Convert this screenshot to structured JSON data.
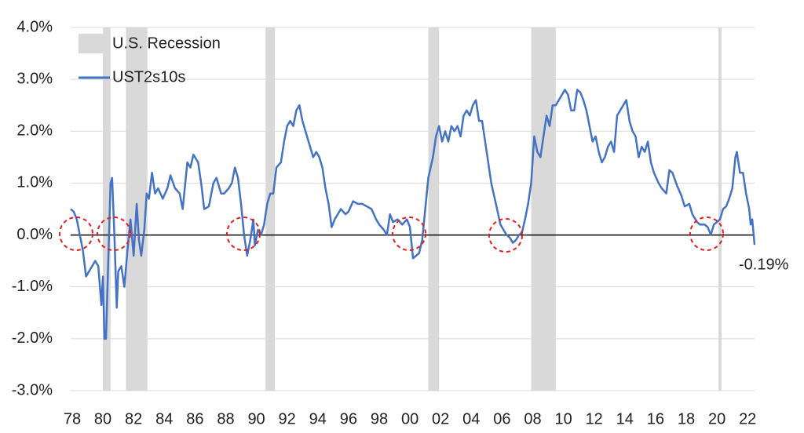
{
  "chart_data": {
    "type": "line",
    "x": [
      1977.9,
      1978.1,
      1978.3,
      1978.5,
      1978.7,
      1978.9,
      1979.1,
      1979.3,
      1979.5,
      1979.7,
      1979.9,
      1980.0,
      1980.1,
      1980.2,
      1980.35,
      1980.5,
      1980.6,
      1980.75,
      1980.9,
      1981.0,
      1981.2,
      1981.4,
      1981.6,
      1981.8,
      1982.0,
      1982.2,
      1982.35,
      1982.5,
      1982.7,
      1982.85,
      1983.0,
      1983.2,
      1983.4,
      1983.6,
      1983.9,
      1984.2,
      1984.4,
      1984.7,
      1985.0,
      1985.2,
      1985.5,
      1985.7,
      1985.9,
      1986.2,
      1986.4,
      1986.6,
      1986.9,
      1987.2,
      1987.4,
      1987.7,
      1987.9,
      1988.2,
      1988.4,
      1988.6,
      1988.8,
      1989.0,
      1989.2,
      1989.4,
      1989.6,
      1989.8,
      1989.9,
      1990.1,
      1990.3,
      1990.5,
      1990.7,
      1990.9,
      1991.1,
      1991.3,
      1991.6,
      1991.8,
      1992.0,
      1992.2,
      1992.4,
      1992.6,
      1992.8,
      1993.0,
      1993.2,
      1993.4,
      1993.7,
      1993.9,
      1994.1,
      1994.3,
      1994.5,
      1994.7,
      1994.9,
      1995.1,
      1995.3,
      1995.5,
      1995.8,
      1996.0,
      1996.3,
      1996.6,
      1996.9,
      1997.2,
      1997.5,
      1997.8,
      1998.0,
      1998.3,
      1998.5,
      1998.7,
      1998.9,
      1999.2,
      1999.5,
      1999.8,
      2000.0,
      2000.2,
      2000.4,
      2000.6,
      2000.8,
      2001.0,
      2001.2,
      2001.5,
      2001.7,
      2001.9,
      2002.1,
      2002.3,
      2002.5,
      2002.7,
      2002.9,
      2003.1,
      2003.3,
      2003.5,
      2003.7,
      2003.9,
      2004.1,
      2004.3,
      2004.5,
      2004.7,
      2004.9,
      2005.1,
      2005.3,
      2005.6,
      2005.9,
      2006.1,
      2006.3,
      2006.5,
      2006.7,
      2006.9,
      2007.1,
      2007.3,
      2007.5,
      2007.7,
      2007.9,
      2008.1,
      2008.3,
      2008.5,
      2008.7,
      2008.9,
      2009.1,
      2009.3,
      2009.5,
      2009.7,
      2009.9,
      2010.1,
      2010.3,
      2010.5,
      2010.7,
      2010.9,
      2011.1,
      2011.3,
      2011.5,
      2011.7,
      2011.9,
      2012.1,
      2012.3,
      2012.5,
      2012.7,
      2012.9,
      2013.1,
      2013.3,
      2013.5,
      2013.7,
      2013.9,
      2014.1,
      2014.3,
      2014.5,
      2014.7,
      2014.9,
      2015.1,
      2015.3,
      2015.5,
      2015.7,
      2015.9,
      2016.2,
      2016.4,
      2016.7,
      2016.9,
      2017.1,
      2017.4,
      2017.7,
      2017.9,
      2018.2,
      2018.4,
      2018.7,
      2018.9,
      2019.2,
      2019.4,
      2019.6,
      2019.8,
      2020.0,
      2020.2,
      2020.4,
      2020.6,
      2020.8,
      2021.0,
      2021.2,
      2021.3,
      2021.5,
      2021.7,
      2021.9,
      2022.1,
      2022.2,
      2022.3,
      2022.45
    ],
    "series": [
      {
        "name": "UST2s10s",
        "color": "#4472c4",
        "values": [
          0.5,
          0.45,
          0.3,
          0.0,
          -0.3,
          -0.8,
          -0.7,
          -0.6,
          -0.5,
          -0.6,
          -1.35,
          -0.8,
          -2.0,
          -2.0,
          -0.5,
          1.0,
          1.1,
          0.0,
          -1.4,
          -0.7,
          -0.6,
          -1.0,
          -0.3,
          0.3,
          -0.4,
          0.6,
          -0.1,
          -0.4,
          0.1,
          0.8,
          0.7,
          1.2,
          0.8,
          0.9,
          0.7,
          0.9,
          1.15,
          0.9,
          0.8,
          0.5,
          1.4,
          1.3,
          1.55,
          1.4,
          1.0,
          0.5,
          0.55,
          1.0,
          1.1,
          0.8,
          0.8,
          0.9,
          1.0,
          1.3,
          1.1,
          0.6,
          0.0,
          -0.4,
          -0.1,
          0.3,
          -0.2,
          0.1,
          0.0,
          0.2,
          0.6,
          0.8,
          0.8,
          1.3,
          1.4,
          1.8,
          2.1,
          2.2,
          2.1,
          2.4,
          2.5,
          2.2,
          2.0,
          1.8,
          1.5,
          1.6,
          1.5,
          1.3,
          0.9,
          0.6,
          0.15,
          0.3,
          0.4,
          0.5,
          0.4,
          0.45,
          0.65,
          0.6,
          0.6,
          0.55,
          0.5,
          0.3,
          0.2,
          0.1,
          0.0,
          0.4,
          0.25,
          0.3,
          0.2,
          0.3,
          0.15,
          -0.45,
          -0.4,
          -0.35,
          -0.1,
          0.5,
          1.1,
          1.5,
          1.9,
          2.1,
          1.8,
          2.0,
          1.8,
          2.1,
          2.0,
          2.1,
          1.9,
          2.3,
          2.4,
          2.3,
          2.5,
          2.6,
          2.2,
          2.2,
          1.8,
          1.4,
          1.0,
          0.6,
          0.2,
          0.1,
          0.0,
          -0.05,
          -0.15,
          -0.1,
          0.0,
          0.05,
          0.3,
          0.6,
          1.0,
          1.9,
          1.6,
          1.5,
          1.9,
          2.3,
          2.1,
          2.5,
          2.5,
          2.6,
          2.7,
          2.8,
          2.7,
          2.4,
          2.4,
          2.8,
          2.75,
          2.6,
          2.4,
          2.1,
          1.8,
          1.9,
          1.6,
          1.4,
          1.5,
          1.7,
          1.8,
          1.6,
          2.3,
          2.4,
          2.5,
          2.6,
          2.2,
          2.0,
          1.9,
          1.5,
          1.7,
          1.6,
          1.8,
          1.4,
          1.2,
          1.0,
          0.9,
          0.8,
          1.25,
          1.2,
          0.95,
          0.75,
          0.55,
          0.6,
          0.4,
          0.25,
          0.2,
          0.2,
          0.15,
          0.0,
          0.2,
          0.25,
          0.3,
          0.5,
          0.55,
          0.7,
          0.9,
          1.5,
          1.6,
          1.2,
          1.2,
          0.8,
          0.5,
          0.2,
          0.3,
          -0.19
        ]
      }
    ],
    "recession_name": "U.S. Recession",
    "recession_color": "#d9d9d9",
    "recessions": [
      [
        1980.0,
        1980.5
      ],
      [
        1981.5,
        1982.9
      ],
      [
        1990.6,
        1991.2
      ],
      [
        2001.2,
        2001.9
      ],
      [
        2007.9,
        2009.5
      ],
      [
        2020.1,
        2020.3
      ]
    ],
    "annotations": [
      {
        "x": 2022.45,
        "y": -0.19,
        "text": "-0.19%"
      }
    ],
    "xlim": [
      1977.9,
      2022.45
    ],
    "ylim": [
      -3,
      4
    ],
    "xticks": [
      {
        "value": 1978,
        "label": "78"
      },
      {
        "value": 1980,
        "label": "80"
      },
      {
        "value": 1982,
        "label": "82"
      },
      {
        "value": 1984,
        "label": "84"
      },
      {
        "value": 1986,
        "label": "86"
      },
      {
        "value": 1988,
        "label": "88"
      },
      {
        "value": 1990,
        "label": "90"
      },
      {
        "value": 1992,
        "label": "92"
      },
      {
        "value": 1994,
        "label": "94"
      },
      {
        "value": 1996,
        "label": "96"
      },
      {
        "value": 1998,
        "label": "98"
      },
      {
        "value": 2000,
        "label": "00"
      },
      {
        "value": 2002,
        "label": "02"
      },
      {
        "value": 2004,
        "label": "04"
      },
      {
        "value": 2006,
        "label": "06"
      },
      {
        "value": 2008,
        "label": "08"
      },
      {
        "value": 2010,
        "label": "10"
      },
      {
        "value": 2012,
        "label": "12"
      },
      {
        "value": 2014,
        "label": "14"
      },
      {
        "value": 2016,
        "label": "16"
      },
      {
        "value": 2018,
        "label": "18"
      },
      {
        "value": 2020,
        "label": "20"
      },
      {
        "value": 2022,
        "label": "22"
      }
    ],
    "yticks": [
      {
        "value": 4,
        "label": "4.0%"
      },
      {
        "value": 3,
        "label": "3.0%"
      },
      {
        "value": 2,
        "label": "2.0%"
      },
      {
        "value": 1,
        "label": "1.0%"
      },
      {
        "value": 0,
        "label": "0.0%"
      },
      {
        "value": -1,
        "label": "-1.0%"
      },
      {
        "value": -2,
        "label": "-2.0%"
      },
      {
        "value": -3,
        "label": "-3.0%"
      }
    ],
    "grid": true,
    "legend": "top-left"
  }
}
